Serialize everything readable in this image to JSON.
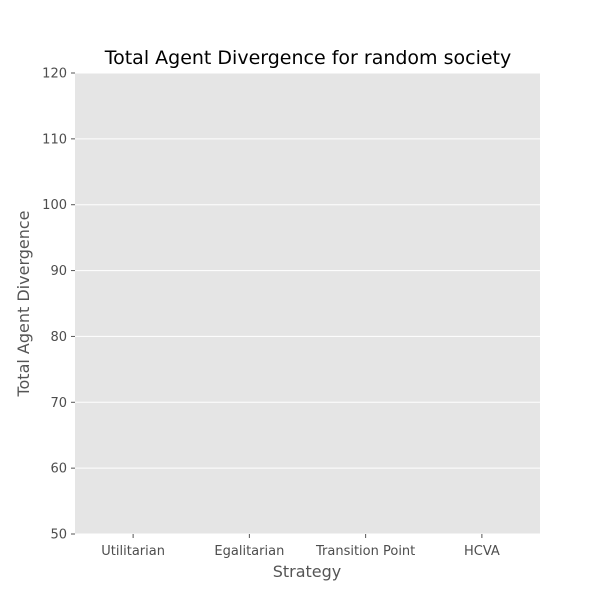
{
  "chart_data": {
    "type": "bar",
    "title": "Total Agent Divergence for random society",
    "xlabel": "Strategy",
    "ylabel": "Total Agent Divergence",
    "categories": [
      "Utilitarian",
      "Egalitarian",
      "Transition Point",
      "HCVA"
    ],
    "values": [
      null,
      null,
      null,
      null
    ],
    "ylim": [
      50,
      120
    ],
    "yticks": [
      50,
      60,
      70,
      80,
      90,
      100,
      110,
      120
    ],
    "grid": true,
    "legend": "none",
    "style": {
      "plot_background": "#e5e5e5",
      "grid_color": "#ffffff",
      "tick_color": "#555555"
    }
  }
}
